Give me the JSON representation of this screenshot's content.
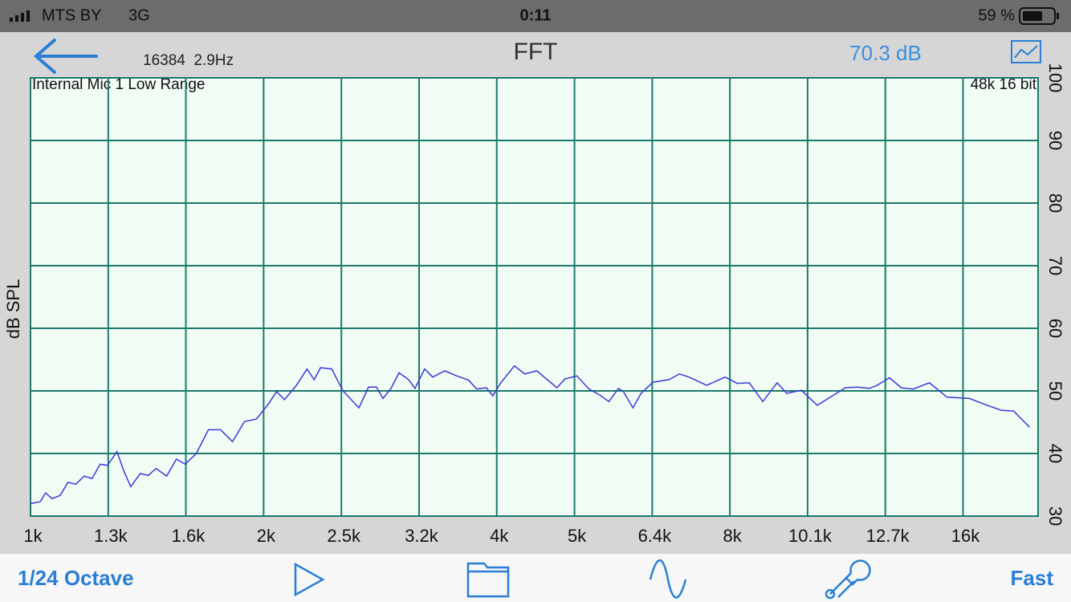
{
  "status_bar": {
    "carrier": "MTS BY",
    "network": "3G",
    "time": "0:11",
    "battery": "59 %"
  },
  "header": {
    "title": "FFT",
    "fft_info": "16384  2.9Hz",
    "level": "70.3 dB"
  },
  "chart_data": {
    "type": "line",
    "input_label": "Internal Mic 1 Low Range",
    "format_label": "48k 16 bit",
    "y_axis_label": "dB SPL",
    "x": [
      1000,
      1029,
      1046,
      1066,
      1092,
      1118,
      1145,
      1173,
      1201,
      1230,
      1257,
      1293,
      1321,
      1347,
      1386,
      1419,
      1453,
      1499,
      1543,
      1584,
      1637,
      1697,
      1759,
      1823,
      1889,
      1957,
      2029,
      2078,
      2128,
      2205,
      2275,
      2324,
      2369,
      2449,
      2532,
      2655,
      2732,
      2798,
      2852,
      2921,
      2991,
      3078,
      3137,
      3228,
      3306,
      3426,
      3551,
      3680,
      3769,
      3878,
      3953,
      4048,
      4215,
      4348,
      4506,
      4637,
      4783,
      4898,
      5076,
      5261,
      5426,
      5583,
      5745,
      5828,
      5997,
      6142,
      6365,
      6676,
      6886,
      7085,
      7466,
      7887,
      8174,
      8472,
      8821,
      9207,
      9474,
      9890,
      10372,
      10749,
      11273,
      11683,
      12108,
      12400,
      12851,
      13319,
      13803,
      14476,
      15256,
      16307,
      17104,
      17938,
      18591,
      19499
    ],
    "series": [
      {
        "color": "#3a3ad8",
        "values": [
          32.0,
          32.3,
          33.7,
          32.8,
          33.3,
          35.4,
          35.1,
          36.4,
          36.0,
          38.3,
          38.1,
          40.3,
          37.1,
          34.7,
          36.8,
          36.5,
          37.6,
          36.4,
          39.1,
          38.3,
          40.0,
          43.8,
          43.8,
          41.9,
          45.1,
          45.5,
          47.9,
          49.9,
          48.6,
          50.9,
          53.5,
          51.8,
          53.7,
          53.5,
          50.0,
          47.3,
          50.6,
          50.6,
          48.8,
          50.4,
          52.9,
          51.8,
          50.4,
          53.5,
          52.2,
          53.2,
          52.4,
          51.7,
          50.3,
          50.5,
          49.2,
          51.3,
          54.0,
          52.7,
          53.2,
          51.9,
          50.5,
          51.9,
          52.4,
          50.3,
          49.4,
          48.3,
          50.4,
          49.9,
          47.3,
          49.6,
          51.4,
          51.8,
          52.7,
          52.2,
          50.9,
          52.2,
          51.2,
          51.3,
          48.3,
          51.3,
          49.6,
          50.1,
          47.7,
          48.9,
          50.5,
          50.6,
          50.4,
          50.9,
          52.1,
          50.5,
          50.3,
          51.3,
          49.0,
          48.8,
          47.8,
          46.9,
          46.8,
          44.2
        ]
      }
    ],
    "xscale": "log",
    "xlim": [
      1000,
      20000
    ],
    "ylim": [
      30,
      100
    ],
    "xticks": [
      {
        "value": 1000,
        "label": "1k"
      },
      {
        "value": 1260,
        "label": "1.3k"
      },
      {
        "value": 1587,
        "label": "1.6k"
      },
      {
        "value": 2000,
        "label": "2k"
      },
      {
        "value": 2520,
        "label": "2.5k"
      },
      {
        "value": 3175,
        "label": "3.2k"
      },
      {
        "value": 4000,
        "label": "4k"
      },
      {
        "value": 5040,
        "label": "5k"
      },
      {
        "value": 6350,
        "label": "6.4k"
      },
      {
        "value": 8000,
        "label": "8k"
      },
      {
        "value": 10079,
        "label": "10.1k"
      },
      {
        "value": 12699,
        "label": "12.7k"
      },
      {
        "value": 16000,
        "label": "16k"
      }
    ],
    "yticks": [
      30,
      40,
      50,
      60,
      70,
      80,
      90,
      100
    ],
    "grid": true
  },
  "toolbar": {
    "resolution": "1/24 Octave",
    "speed": "Fast"
  }
}
